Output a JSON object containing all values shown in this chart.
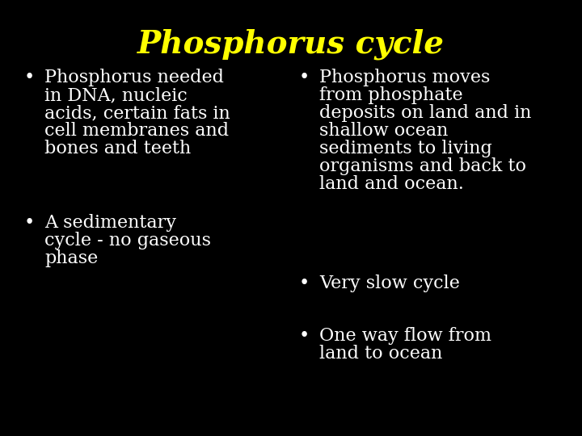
{
  "title": "Phosphorus cycle",
  "title_color": "#FFFF00",
  "title_fontsize": 28,
  "background_color": "#000000",
  "text_color": "#FFFFFF",
  "bullet_char": "•",
  "left_bullets": [
    [
      "Phosphorus needed",
      "in DNA, nucleic",
      "acids, certain fats in",
      "cell membranes and",
      "bones and teeth"
    ],
    [
      "A sedimentary",
      "cycle - no gaseous",
      "phase"
    ]
  ],
  "right_bullets": [
    [
      "Phosphorus moves",
      "from phosphate",
      "deposits on land and in",
      "shallow ocean",
      "sediments to living",
      "organisms and back to",
      "land and ocean."
    ],
    [
      "Very slow cycle"
    ],
    [
      "One way flow from",
      "land to ocean"
    ]
  ],
  "body_fontsize": 16,
  "title_font_family": "DejaVu Serif",
  "body_font_family": "DejaVu Serif"
}
